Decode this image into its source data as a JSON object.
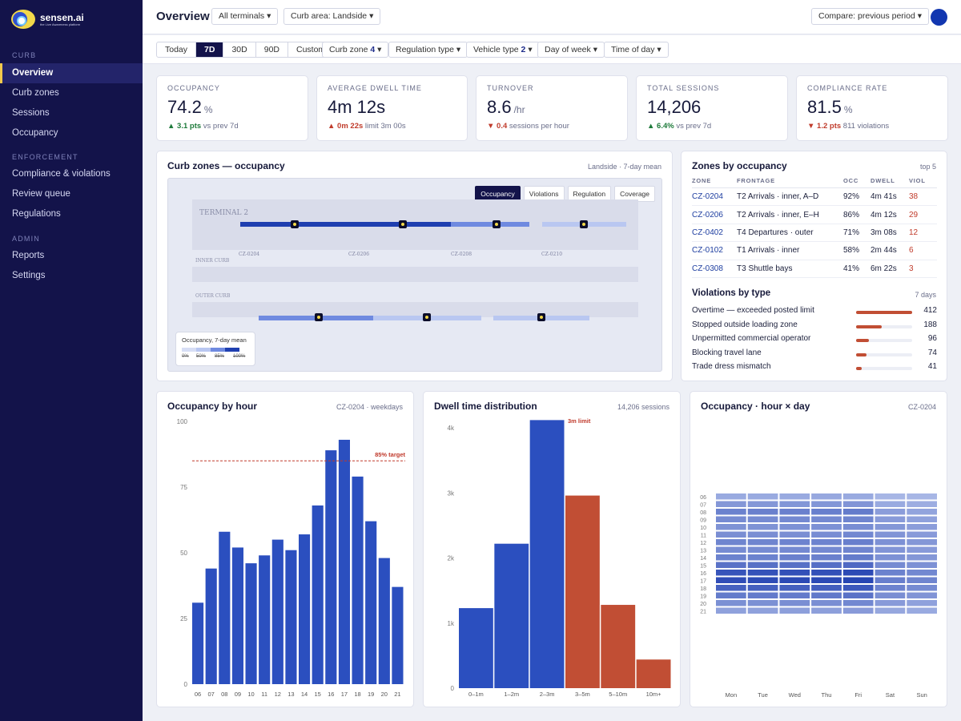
{
  "brand": {
    "name": "sensen.ai",
    "tagline": "the Live Awareness platform"
  },
  "sidebar": {
    "sections": [
      {
        "title": "CURB",
        "items": [
          "Overview",
          "Curb zones",
          "Sessions",
          "Occupancy"
        ]
      },
      {
        "title": "ENFORCEMENT",
        "items": [
          "Compliance & violations",
          "Review queue",
          "Regulations"
        ]
      },
      {
        "title": "ADMIN",
        "items": [
          "Reports",
          "Settings"
        ]
      }
    ],
    "active": "Overview"
  },
  "header": {
    "title": "Overview",
    "terminals": "All terminals",
    "curb_area": "Curb area: Landside",
    "compare": "Compare: previous period"
  },
  "filters": {
    "ranges": [
      "Today",
      "7D",
      "30D",
      "90D",
      "Custom"
    ],
    "selected_range": "7D",
    "curb_zone": {
      "label": "Curb zone",
      "count": "4"
    },
    "regulation": "Regulation type",
    "vehicle": {
      "label": "Vehicle type",
      "count": "2"
    },
    "day_of_week": "Day of week",
    "time_of_day": "Time of day"
  },
  "kpis": [
    {
      "label": "OCCUPANCY",
      "value": "74.2",
      "unit": "%",
      "dir": "up",
      "delta": "3.1 pts",
      "note": "vs prev 7d"
    },
    {
      "label": "AVERAGE DWELL TIME",
      "value": "4m 12s",
      "unit": "",
      "dir": "up-bad",
      "delta": "0m 22s",
      "note": "limit 3m 00s"
    },
    {
      "label": "TURNOVER",
      "value": "8.6",
      "unit": "/hr",
      "dir": "down",
      "delta": "0.4",
      "note": "sessions per hour"
    },
    {
      "label": "TOTAL SESSIONS",
      "value": "14,206",
      "unit": "",
      "dir": "up",
      "delta": "6.4%",
      "note": "vs prev 7d"
    },
    {
      "label": "COMPLIANCE RATE",
      "value": "81.5",
      "unit": "%",
      "dir": "down",
      "delta": "1.2 pts",
      "note": "811 violations"
    }
  ],
  "map": {
    "title": "Curb zones — occupancy",
    "meta": "Landside · 7-day mean",
    "tabs": [
      "Occupancy",
      "Violations",
      "Regulation",
      "Coverage"
    ],
    "selected_tab": "Occupancy",
    "terminal_label": "TERMINAL 2",
    "inner_label": "INNER CURB",
    "outer_label": "OUTER CURB",
    "zone_codes": [
      "CZ-0204",
      "CZ-0206",
      "CZ-0208",
      "CZ-0210"
    ],
    "legend_title": "Occupancy, 7-day mean",
    "legend_ticks": [
      "0%",
      "50%",
      "85%",
      "100%"
    ],
    "colors": {
      "high": "#1f3fb0",
      "mid": "#6f8ae0",
      "low": "#b9c7f1",
      "accent": "#f2d84a"
    }
  },
  "zones_table": {
    "title": "Zones by occupancy",
    "meta": "top 5",
    "columns": [
      "ZONE",
      "FRONTAGE",
      "OCC",
      "DWELL",
      "VIOL"
    ],
    "rows": [
      [
        "CZ-0204",
        "T2 Arrivals · inner, A–D",
        "92%",
        "4m 41s",
        "38"
      ],
      [
        "CZ-0206",
        "T2 Arrivals · inner, E–H",
        "86%",
        "4m 12s",
        "29"
      ],
      [
        "CZ-0402",
        "T4 Departures · outer",
        "71%",
        "3m 08s",
        "12"
      ],
      [
        "CZ-0102",
        "T1 Arrivals · inner",
        "58%",
        "2m 44s",
        "6"
      ],
      [
        "CZ-0308",
        "T3 Shuttle bays",
        "41%",
        "6m 22s",
        "3"
      ]
    ]
  },
  "violations": {
    "title": "Violations by type",
    "meta": "7 days",
    "items": [
      {
        "label": "Overtime — exceeded posted limit",
        "count": 412
      },
      {
        "label": "Stopped outside loading zone",
        "count": 188
      },
      {
        "label": "Unpermitted commercial operator",
        "count": 96
      },
      {
        "label": "Blocking travel lane",
        "count": 74
      },
      {
        "label": "Trade dress mismatch",
        "count": 41
      }
    ],
    "color": "#c14e34"
  },
  "occ_by_hour": {
    "title": "Occupancy by hour",
    "meta": "CZ-0204 · weekdays",
    "target_label": "85% target",
    "color": "#2b4fbf",
    "target_color": "#c0392b",
    "chart_data": {
      "type": "bar",
      "categories": [
        "06",
        "07",
        "08",
        "09",
        "10",
        "11",
        "12",
        "13",
        "14",
        "15",
        "16",
        "17",
        "18",
        "19",
        "20",
        "21"
      ],
      "values": [
        31,
        44,
        58,
        52,
        46,
        49,
        55,
        51,
        57,
        68,
        89,
        93,
        79,
        62,
        48,
        37
      ],
      "target": 85,
      "ylim": [
        0,
        100
      ],
      "yticks": [
        0,
        25,
        50,
        75,
        100
      ]
    }
  },
  "dwell_dist": {
    "title": "Dwell time distribution",
    "meta": "14,206 sessions",
    "limit_label": "3m limit",
    "colors": {
      "under": "#2b4fbf",
      "over": "#c14e34"
    },
    "chart_data": {
      "type": "bar",
      "categories": [
        "0–1m",
        "1–2m",
        "2–3m",
        "3–5m",
        "5–10m",
        "10m+"
      ],
      "values": [
        1230,
        2220,
        4120,
        2960,
        1280,
        440
      ],
      "over_limit_from": 3,
      "ylim": [
        0,
        4100
      ],
      "ytick_values": [
        0,
        1000,
        2000,
        3000,
        4000
      ],
      "ytick_labels": [
        "0",
        "1k",
        "2k",
        "3k",
        "4k"
      ]
    }
  },
  "heatmap": {
    "title": "Occupancy · hour × day",
    "meta": "CZ-0204",
    "chart_data": {
      "type": "heatmap",
      "days": [
        "Mon",
        "Tue",
        "Wed",
        "Thu",
        "Fri",
        "Sat",
        "Sun"
      ],
      "hours": [
        "06",
        "07",
        "08",
        "09",
        "10",
        "11",
        "12",
        "13",
        "14",
        "15",
        "16",
        "17",
        "18",
        "19",
        "20",
        "21"
      ],
      "values": [
        [
          0.3,
          0.3,
          0.3,
          0.31,
          0.3,
          0.22,
          0.22
        ],
        [
          0.42,
          0.42,
          0.43,
          0.43,
          0.44,
          0.3,
          0.28
        ],
        [
          0.56,
          0.57,
          0.57,
          0.58,
          0.6,
          0.38,
          0.34
        ],
        [
          0.5,
          0.5,
          0.51,
          0.51,
          0.54,
          0.4,
          0.36
        ],
        [
          0.45,
          0.45,
          0.46,
          0.46,
          0.49,
          0.42,
          0.38
        ],
        [
          0.48,
          0.48,
          0.48,
          0.49,
          0.52,
          0.44,
          0.4
        ],
        [
          0.54,
          0.54,
          0.55,
          0.55,
          0.58,
          0.46,
          0.42
        ],
        [
          0.5,
          0.5,
          0.51,
          0.51,
          0.54,
          0.44,
          0.4
        ],
        [
          0.56,
          0.56,
          0.57,
          0.57,
          0.6,
          0.46,
          0.42
        ],
        [
          0.66,
          0.67,
          0.67,
          0.68,
          0.72,
          0.5,
          0.46
        ],
        [
          0.86,
          0.87,
          0.88,
          0.88,
          0.92,
          0.56,
          0.52
        ],
        [
          0.9,
          0.91,
          0.92,
          0.92,
          0.95,
          0.58,
          0.54
        ],
        [
          0.77,
          0.78,
          0.78,
          0.79,
          0.83,
          0.55,
          0.5
        ],
        [
          0.6,
          0.61,
          0.61,
          0.62,
          0.66,
          0.48,
          0.44
        ],
        [
          0.47,
          0.47,
          0.48,
          0.48,
          0.52,
          0.4,
          0.36
        ],
        [
          0.36,
          0.36,
          0.37,
          0.37,
          0.4,
          0.32,
          0.3
        ]
      ],
      "vmin": 0,
      "vmax": 1
    }
  }
}
